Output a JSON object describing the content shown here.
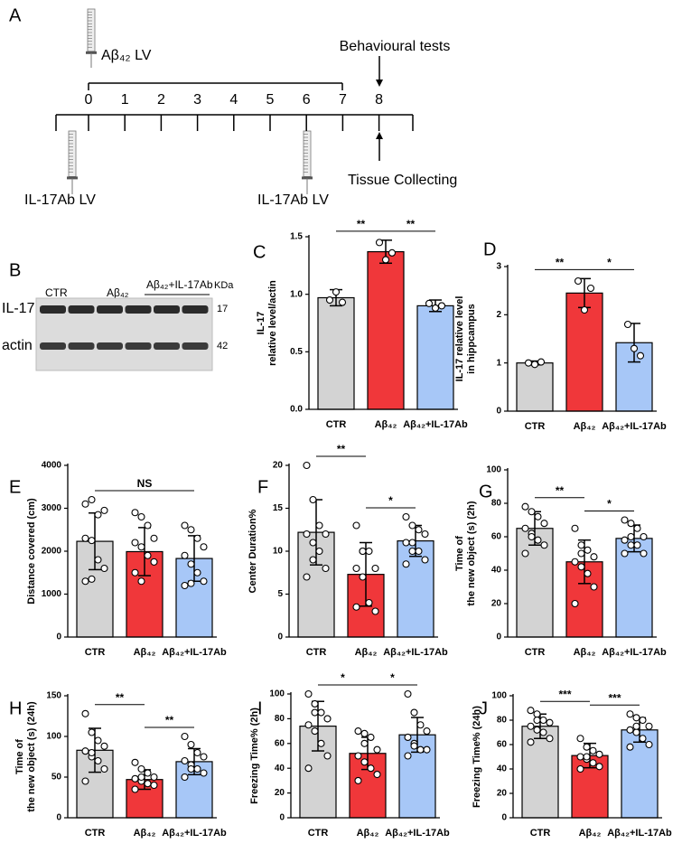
{
  "timeline": {
    "label": "A",
    "days": [
      0,
      1,
      2,
      3,
      4,
      5,
      6,
      7,
      8
    ],
    "injection": "Aβ₄₂ LV",
    "behaviour": "Behavioural tests",
    "tissue": "Tissue Collecting",
    "antibody": [
      "IL-17Ab LV",
      "IL-17Ab LV"
    ]
  },
  "blot": {
    "label": "B",
    "groups": [
      "CTR",
      "Aβ₄₂",
      "Aβ₄₂+IL-17Ab"
    ],
    "kda_title": "KDa",
    "rows": [
      {
        "name": "IL-17",
        "kda": 17
      },
      {
        "name": "actin",
        "kda": 42
      }
    ]
  },
  "chart_data": [
    {
      "type": "bar",
      "label": "C",
      "ylabel": [
        "IL-17",
        "relative level/actin"
      ],
      "categories": [
        "CTR",
        "Aβ₄₂",
        "Aβ₄₂+IL-17Ab"
      ],
      "colors": [
        "#d3d3d3",
        "#f0373a",
        "#a7c7f7"
      ],
      "values": [
        0.97,
        1.37,
        0.9
      ],
      "errors": [
        0.07,
        0.1,
        0.05
      ],
      "points": [
        [
          0.95,
          1.02,
          0.93
        ],
        [
          1.45,
          1.3,
          1.36
        ],
        [
          0.92,
          0.88,
          0.9
        ]
      ],
      "ylim": [
        0,
        1.5
      ],
      "yticks": [
        {
          "value": 0,
          "label": "0.0"
        },
        0.5,
        {
          "value": 1,
          "label": "1.0"
        },
        1.5
      ],
      "comparisons": [
        {
          "groups": [
            0,
            1
          ],
          "label": "**"
        },
        {
          "groups": [
            1,
            2
          ],
          "label": "**"
        }
      ]
    },
    {
      "type": "bar",
      "label": "D",
      "ylabel": [
        "IL-17  relative level",
        "in hippcampus"
      ],
      "categories": [
        "CTR",
        "Aβ₄₂",
        "Aβ₄₂+IL-17Ab"
      ],
      "colors": [
        "#d3d3d3",
        "#f0373a",
        "#a7c7f7"
      ],
      "values": [
        1.0,
        2.45,
        1.42
      ],
      "errors": [
        0.04,
        0.3,
        0.4
      ],
      "points": [
        [
          1.0,
          0.97,
          1.02
        ],
        [
          2.7,
          2.1,
          2.55
        ],
        [
          1.8,
          1.3,
          1.15
        ]
      ],
      "ylim": [
        0,
        3
      ],
      "yticks": [
        0,
        1,
        2,
        3
      ],
      "comparisons": [
        {
          "groups": [
            0,
            1
          ],
          "label": "**"
        },
        {
          "groups": [
            1,
            2
          ],
          "label": "*"
        }
      ]
    },
    {
      "type": "bar",
      "label": "E",
      "ylabel": [
        "Distance covered (cm)"
      ],
      "categories": [
        "CTR",
        "Aβ₄₂",
        "Aβ₄₂+IL-17Ab"
      ],
      "colors": [
        "#d3d3d3",
        "#f0373a",
        "#a7c7f7"
      ],
      "values": [
        2230,
        1990,
        1830
      ],
      "errors": [
        660,
        560,
        530
      ],
      "points": [
        [
          3100,
          3200,
          2850,
          2950,
          2300,
          2250,
          1800,
          1600,
          1300,
          1350
        ],
        [
          2900,
          2800,
          2600,
          2300,
          2200,
          2100,
          1900,
          1750,
          1500,
          1300
        ],
        [
          2600,
          2500,
          2300,
          2100,
          1900,
          1700,
          1500,
          1300,
          1200,
          1250
        ]
      ],
      "ylim": [
        0,
        4000
      ],
      "yticks": [
        0,
        1000,
        2000,
        3000,
        4000
      ],
      "comparisons": [
        {
          "groups": [
            0,
            2
          ],
          "label": "NS"
        }
      ]
    },
    {
      "type": "bar",
      "label": "F",
      "ylabel": [
        "Center Duration%"
      ],
      "categories": [
        "CTR",
        "Aβ₄₂",
        "Aβ₄₂+IL-17Ab"
      ],
      "colors": [
        "#d3d3d3",
        "#f0373a",
        "#a7c7f7"
      ],
      "values": [
        12.2,
        7.3,
        11.2
      ],
      "errors": [
        3.8,
        3.7,
        1.8
      ],
      "points": [
        [
          20,
          16,
          13,
          12,
          12,
          11,
          10,
          8,
          7,
          9
        ],
        [
          13,
          10,
          10,
          8,
          8,
          7,
          4,
          3,
          3.5,
          10
        ],
        [
          14,
          13,
          12.5,
          12,
          11,
          10,
          10,
          9,
          8.5,
          11
        ]
      ],
      "ylim": [
        0,
        20
      ],
      "yticks": [
        0,
        5,
        10,
        15,
        20
      ],
      "comparisons": [
        {
          "groups": [
            0,
            1
          ],
          "label": "**"
        },
        {
          "groups": [
            1,
            2
          ],
          "label": "*"
        }
      ]
    },
    {
      "type": "bar",
      "label": "G",
      "ylabel": [
        "Time of",
        "the new object (s) (2h)"
      ],
      "categories": [
        "CTR",
        "Aβ₄₂",
        "Aβ₄₂+IL-17Ab"
      ],
      "colors": [
        "#d3d3d3",
        "#f0373a",
        "#a7c7f7"
      ],
      "values": [
        65,
        45,
        59
      ],
      "errors": [
        10,
        13,
        8
      ],
      "points": [
        [
          78,
          75,
          72,
          68,
          65,
          62,
          58,
          55,
          50,
          60
        ],
        [
          65,
          55,
          52,
          48,
          45,
          42,
          38,
          30,
          20,
          50
        ],
        [
          70,
          68,
          65,
          60,
          58,
          55,
          55,
          50,
          50,
          60
        ]
      ],
      "ylim": [
        0,
        100
      ],
      "yticks": [
        0,
        20,
        40,
        60,
        80,
        100
      ],
      "comparisons": [
        {
          "groups": [
            0,
            1
          ],
          "label": "**"
        },
        {
          "groups": [
            1,
            2
          ],
          "label": "*"
        }
      ]
    },
    {
      "type": "bar",
      "label": "H",
      "ylabel": [
        "Time of",
        "the new object (s) (24h)"
      ],
      "categories": [
        "CTR",
        "Aβ₄₂",
        "Aβ₄₂+IL-17Ab"
      ],
      "colors": [
        "#d3d3d3",
        "#f0373a",
        "#a7c7f7"
      ],
      "values": [
        83,
        47,
        69
      ],
      "errors": [
        27,
        12,
        16
      ],
      "points": [
        [
          128,
          105,
          95,
          88,
          82,
          75,
          70,
          60,
          45,
          80
        ],
        [
          68,
          60,
          55,
          50,
          48,
          45,
          42,
          40,
          35,
          50
        ],
        [
          100,
          90,
          80,
          75,
          70,
          65,
          60,
          55,
          50,
          60
        ]
      ],
      "ylim": [
        0,
        150
      ],
      "yticks": [
        0,
        50,
        100,
        150
      ],
      "comparisons": [
        {
          "groups": [
            0,
            1
          ],
          "label": "**"
        },
        {
          "groups": [
            1,
            2
          ],
          "label": "**"
        }
      ]
    },
    {
      "type": "bar",
      "label": "I",
      "ylabel": [
        "Freezing Time% (2h)"
      ],
      "categories": [
        "CTR",
        "Aβ₄₂",
        "Aβ₄₂+IL-17Ab"
      ],
      "colors": [
        "#d3d3d3",
        "#f0373a",
        "#a7c7f7"
      ],
      "values": [
        74,
        52,
        67
      ],
      "errors": [
        20,
        13,
        14
      ],
      "points": [
        [
          100,
          92,
          85,
          80,
          75,
          70,
          60,
          50,
          40,
          85
        ],
        [
          70,
          68,
          65,
          55,
          50,
          45,
          40,
          35,
          30,
          60
        ],
        [
          100,
          85,
          75,
          70,
          65,
          60,
          55,
          55,
          50,
          58
        ]
      ],
      "ylim": [
        0,
        100
      ],
      "yticks": [
        0,
        20,
        40,
        60,
        80,
        100
      ],
      "comparisons": [
        {
          "groups": [
            0,
            1
          ],
          "label": "*"
        },
        {
          "groups": [
            1,
            2
          ],
          "label": "*"
        }
      ]
    },
    {
      "type": "bar",
      "label": "J",
      "ylabel": [
        "Freezing Time% (24h)"
      ],
      "categories": [
        "CTR",
        "Aβ₄₂",
        "Aβ₄₂+IL-17Ab"
      ],
      "colors": [
        "#d3d3d3",
        "#f0373a",
        "#a7c7f7"
      ],
      "values": [
        75,
        51,
        72
      ],
      "errors": [
        10,
        10,
        10
      ],
      "points": [
        [
          88,
          85,
          80,
          78,
          75,
          72,
          70,
          65,
          62,
          80
        ],
        [
          65,
          58,
          55,
          52,
          50,
          48,
          45,
          42,
          40,
          50
        ],
        [
          85,
          82,
          80,
          75,
          72,
          70,
          65,
          60,
          58,
          75
        ]
      ],
      "ylim": [
        0,
        100
      ],
      "yticks": [
        0,
        20,
        40,
        60,
        80,
        100
      ],
      "comparisons": [
        {
          "groups": [
            0,
            1
          ],
          "label": "***"
        },
        {
          "groups": [
            1,
            2
          ],
          "label": "***"
        }
      ]
    }
  ]
}
